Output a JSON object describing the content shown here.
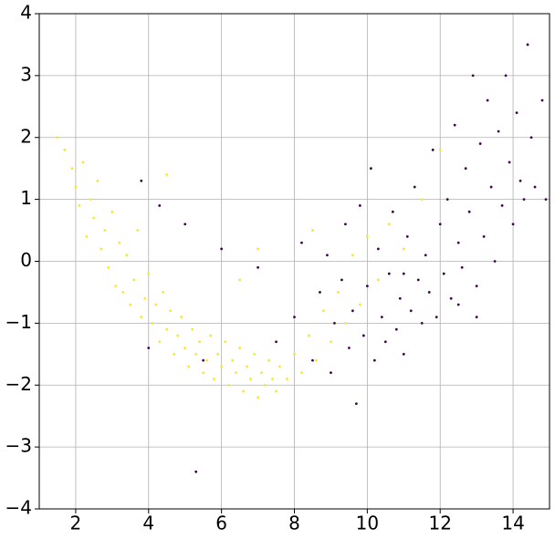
{
  "chart_data": {
    "type": "scatter",
    "xlim": [
      1,
      15
    ],
    "ylim": [
      -4,
      4
    ],
    "xticks": [
      2,
      4,
      6,
      8,
      10,
      12,
      14
    ],
    "yticks": [
      {
        "value": -4,
        "label": "−4"
      },
      {
        "value": -3,
        "label": "−3"
      },
      {
        "value": -2,
        "label": "−2"
      },
      {
        "value": -1,
        "label": "−1"
      },
      0,
      1,
      2,
      3,
      4
    ],
    "grid": true,
    "series": [
      {
        "color": "#fde725",
        "x": [
          1.5,
          1.7,
          1.9,
          2.0,
          2.1,
          2.2,
          2.3,
          2.4,
          2.5,
          2.6,
          2.7,
          2.8,
          2.9,
          3.0,
          3.1,
          3.2,
          3.3,
          3.4,
          3.5,
          3.6,
          3.7,
          3.8,
          3.9,
          4.0,
          4.1,
          4.2,
          4.3,
          4.4,
          4.5,
          4.6,
          4.7,
          4.8,
          4.9,
          5.0,
          5.1,
          5.2,
          5.3,
          5.4,
          5.5,
          5.6,
          5.7,
          5.8,
          5.9,
          6.0,
          6.1,
          6.2,
          6.3,
          6.4,
          6.5,
          6.6,
          6.7,
          6.8,
          6.9,
          7.0,
          7.1,
          7.2,
          7.3,
          7.4,
          7.5,
          7.6,
          7.8,
          8.0,
          8.2,
          8.4,
          8.6,
          8.8,
          9.0,
          9.2,
          9.4,
          9.6,
          9.8,
          10.0,
          10.3,
          10.6,
          11.0,
          11.5,
          12.0,
          7.0,
          6.5,
          8.5,
          4.5
        ],
        "y": [
          2.0,
          1.8,
          1.5,
          1.2,
          0.9,
          1.6,
          0.4,
          1.0,
          0.7,
          1.3,
          0.2,
          0.5,
          -0.1,
          0.8,
          -0.4,
          0.3,
          -0.5,
          0.1,
          -0.7,
          -0.3,
          0.5,
          -0.9,
          -0.6,
          -0.2,
          -1.0,
          -0.7,
          -1.3,
          -0.5,
          -1.1,
          -0.8,
          -1.5,
          -1.2,
          -0.9,
          -1.4,
          -1.7,
          -1.1,
          -1.5,
          -1.3,
          -1.8,
          -1.6,
          -1.2,
          -1.9,
          -1.5,
          -1.7,
          -1.3,
          -2.0,
          -1.6,
          -1.8,
          -1.4,
          -2.1,
          -1.7,
          -1.9,
          -1.5,
          -2.2,
          -1.8,
          -2.0,
          -1.6,
          -1.9,
          -2.1,
          -1.7,
          -1.9,
          -1.5,
          -1.8,
          -1.2,
          -1.6,
          -0.8,
          -1.3,
          -0.5,
          -1.0,
          0.1,
          -0.7,
          0.4,
          -0.3,
          0.6,
          0.2,
          1.0,
          1.8,
          0.2,
          -0.3,
          0.5,
          1.4
        ]
      },
      {
        "color": "#440154",
        "x": [
          5.3,
          5.5,
          4.0,
          3.8,
          4.3,
          5.0,
          6.0,
          7.0,
          7.5,
          8.0,
          8.2,
          8.5,
          8.7,
          8.9,
          9.0,
          9.1,
          9.3,
          9.4,
          9.5,
          9.6,
          9.7,
          9.8,
          9.9,
          10.0,
          10.1,
          10.2,
          10.3,
          10.4,
          10.5,
          10.6,
          10.7,
          10.8,
          10.9,
          11.0,
          11.1,
          11.2,
          11.3,
          11.4,
          11.5,
          11.6,
          11.7,
          11.8,
          11.9,
          12.0,
          12.1,
          12.2,
          12.3,
          12.4,
          12.5,
          12.6,
          12.7,
          12.8,
          12.9,
          13.0,
          13.1,
          13.2,
          13.3,
          13.4,
          13.5,
          13.6,
          13.7,
          13.8,
          13.9,
          14.0,
          14.1,
          14.2,
          14.3,
          14.4,
          14.5,
          14.6,
          14.8,
          14.9,
          13.0,
          12.5,
          11.0
        ],
        "y": [
          -3.4,
          -1.6,
          -1.4,
          1.3,
          0.9,
          0.6,
          0.2,
          -0.1,
          -1.3,
          -0.9,
          0.3,
          -1.6,
          -0.5,
          0.1,
          -1.8,
          -1.0,
          -0.3,
          0.6,
          -1.4,
          -0.8,
          -2.3,
          0.9,
          -1.2,
          -0.4,
          1.5,
          -1.6,
          0.2,
          -0.9,
          -1.3,
          -0.2,
          0.8,
          -1.1,
          -0.6,
          -1.5,
          0.4,
          -0.8,
          1.2,
          -0.3,
          -1.0,
          0.1,
          -0.5,
          1.8,
          -0.9,
          0.6,
          -0.2,
          1.0,
          -0.6,
          2.2,
          0.3,
          -0.1,
          1.5,
          0.8,
          3.0,
          -0.4,
          1.9,
          0.4,
          2.6,
          1.2,
          0.0,
          2.1,
          0.9,
          3.0,
          1.6,
          0.6,
          2.4,
          1.3,
          1.0,
          3.5,
          2.0,
          1.2,
          2.6,
          1.0,
          -0.9,
          -0.7,
          -0.2
        ]
      }
    ]
  }
}
